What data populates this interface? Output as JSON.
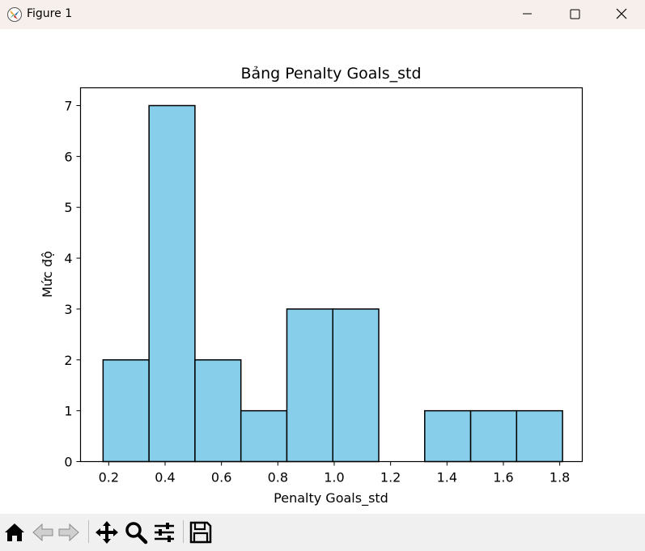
{
  "window": {
    "title": "Figure 1"
  },
  "toolbar": {
    "icons": [
      "home-icon",
      "back-arrow-icon",
      "forward-arrow-icon",
      "pan-move-icon",
      "zoom-magnifier-icon",
      "configure-subplots-icon",
      "save-floppy-icon"
    ]
  },
  "chart_data": {
    "type": "bar",
    "subtype": "histogram",
    "title": "Bảng Penalty Goals_std",
    "xlabel": "Penalty Goals_std",
    "ylabel": "Mức độ",
    "bin_edges": [
      0.18,
      0.343,
      0.506,
      0.669,
      0.832,
      0.995,
      1.158,
      1.321,
      1.484,
      1.647,
      1.81
    ],
    "values": [
      2,
      7,
      2,
      1,
      3,
      3,
      0,
      1,
      1,
      1
    ],
    "xlim": [
      0.1,
      1.88
    ],
    "ylim": [
      0,
      7.35
    ],
    "xticks": [
      "0.2",
      "0.4",
      "0.6",
      "0.8",
      "1.0",
      "1.2",
      "1.4",
      "1.6",
      "1.8"
    ],
    "xtick_values": [
      0.2,
      0.4,
      0.6,
      0.8,
      1.0,
      1.2,
      1.4,
      1.6,
      1.8
    ],
    "yticks": [
      "0",
      "1",
      "2",
      "3",
      "4",
      "5",
      "6",
      "7"
    ],
    "ytick_values": [
      0,
      1,
      2,
      3,
      4,
      5,
      6,
      7
    ],
    "bar_color": "#87ceeb",
    "edge_color": "#000000",
    "grid": false
  }
}
